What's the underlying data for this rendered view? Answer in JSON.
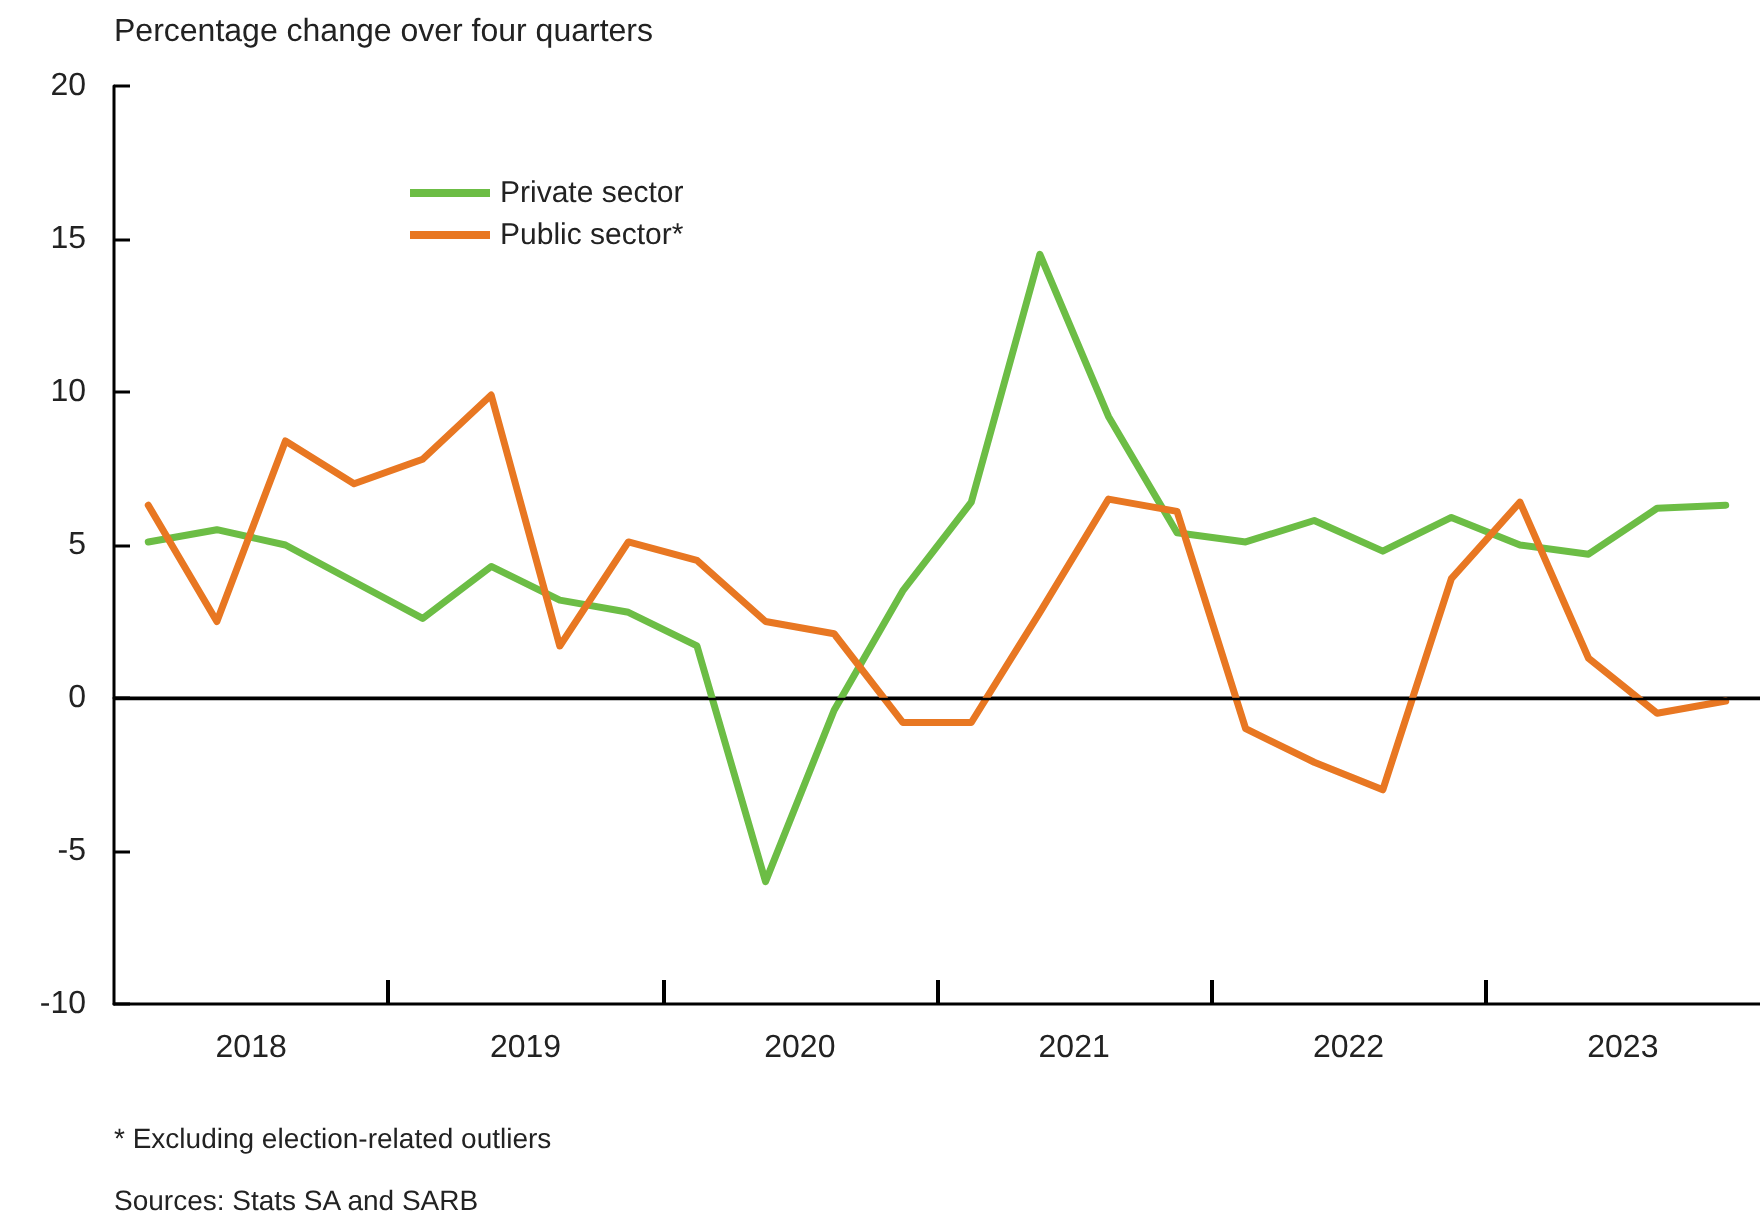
{
  "chart_data": {
    "type": "line",
    "ylabel": "Percentage change over four quarters",
    "x": [
      2018.125,
      2018.375,
      2018.625,
      2018.875,
      2019.125,
      2019.375,
      2019.625,
      2019.875,
      2020.125,
      2020.375,
      2020.625,
      2020.875,
      2021.125,
      2021.375,
      2021.625,
      2021.875,
      2022.125,
      2022.375,
      2022.625,
      2022.875,
      2023.125,
      2023.375,
      2023.625,
      2023.875
    ],
    "series": [
      {
        "name": "Private sector",
        "color": "#6cbd45",
        "values": [
          5.1,
          5.5,
          5.0,
          3.8,
          2.6,
          4.3,
          3.2,
          2.8,
          1.7,
          -6.0,
          -0.4,
          3.5,
          6.4,
          14.5,
          9.2,
          5.4,
          5.1,
          5.8,
          4.8,
          5.9,
          5.0,
          4.7,
          6.2,
          6.3
        ]
      },
      {
        "name": "Public sector*",
        "color": "#e87722",
        "values": [
          6.3,
          2.5,
          8.4,
          7.0,
          7.8,
          9.9,
          1.7,
          5.1,
          4.5,
          2.5,
          2.1,
          -0.8,
          -0.8,
          2.8,
          6.5,
          6.1,
          -1.0,
          -2.1,
          -3.0,
          3.9,
          6.4,
          1.3,
          -0.5,
          -0.1
        ]
      }
    ],
    "xlim": [
      2018,
      2024
    ],
    "xticks": [
      {
        "value": 2018.5,
        "label": "2018"
      },
      {
        "value": 2019,
        "label": null
      },
      {
        "value": 2019.5,
        "label": "2019"
      },
      {
        "value": 2020,
        "label": null
      },
      {
        "value": 2020.5,
        "label": "2020"
      },
      {
        "value": 2021,
        "label": null
      },
      {
        "value": 2021.5,
        "label": "2021"
      },
      {
        "value": 2022,
        "label": null
      },
      {
        "value": 2022.5,
        "label": "2022"
      },
      {
        "value": 2023,
        "label": null
      },
      {
        "value": 2023.5,
        "label": "2023"
      }
    ],
    "ylim": [
      -10,
      20
    ],
    "yticks": [
      -10,
      -5,
      0,
      5,
      10,
      15,
      20
    ],
    "ref_lines": [
      {
        "axis": "y",
        "value": 0,
        "color": "#000000"
      }
    ],
    "legend": "top left",
    "grid": false,
    "marker": "none",
    "line_style": "solid",
    "annotations": [
      "* Excluding election-related outliers",
      "Sources: Stats SA and SARB"
    ]
  }
}
